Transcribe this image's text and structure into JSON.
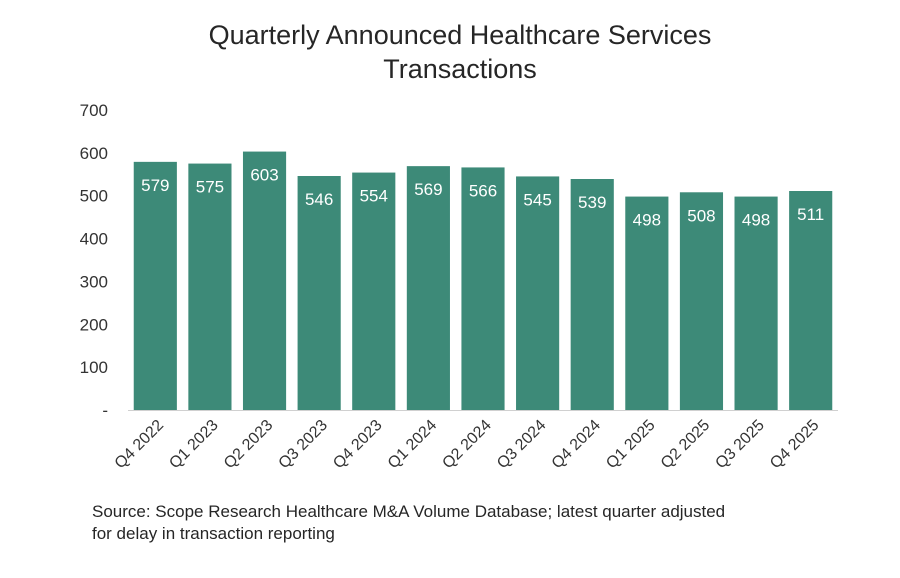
{
  "chart_data": {
    "type": "bar",
    "title": [
      "Quarterly Announced Healthcare Services",
      "Transactions"
    ],
    "categories": [
      "Q4 2022",
      "Q1 2023",
      "Q2 2023",
      "Q3 2023",
      "Q4 2023",
      "Q1 2024",
      "Q2 2024",
      "Q3 2024",
      "Q4 2024",
      "Q1 2025",
      "Q2 2025",
      "Q3 2025",
      "Q4 2025"
    ],
    "values": [
      579,
      575,
      603,
      546,
      554,
      569,
      566,
      545,
      539,
      498,
      508,
      498,
      511
    ],
    "ylim": [
      0,
      700
    ],
    "yticks": [
      "-",
      "100",
      "200",
      "300",
      "400",
      "500",
      "600",
      "700"
    ],
    "xlabel": "",
    "ylabel": "",
    "grid": false,
    "bar_color": "#3d8a78",
    "label_color": "#ffffff"
  },
  "source": {
    "line1": "Source: Scope Research Healthcare M&A Volume Database; latest quarter adjusted",
    "line2": "for delay in transaction reporting"
  }
}
